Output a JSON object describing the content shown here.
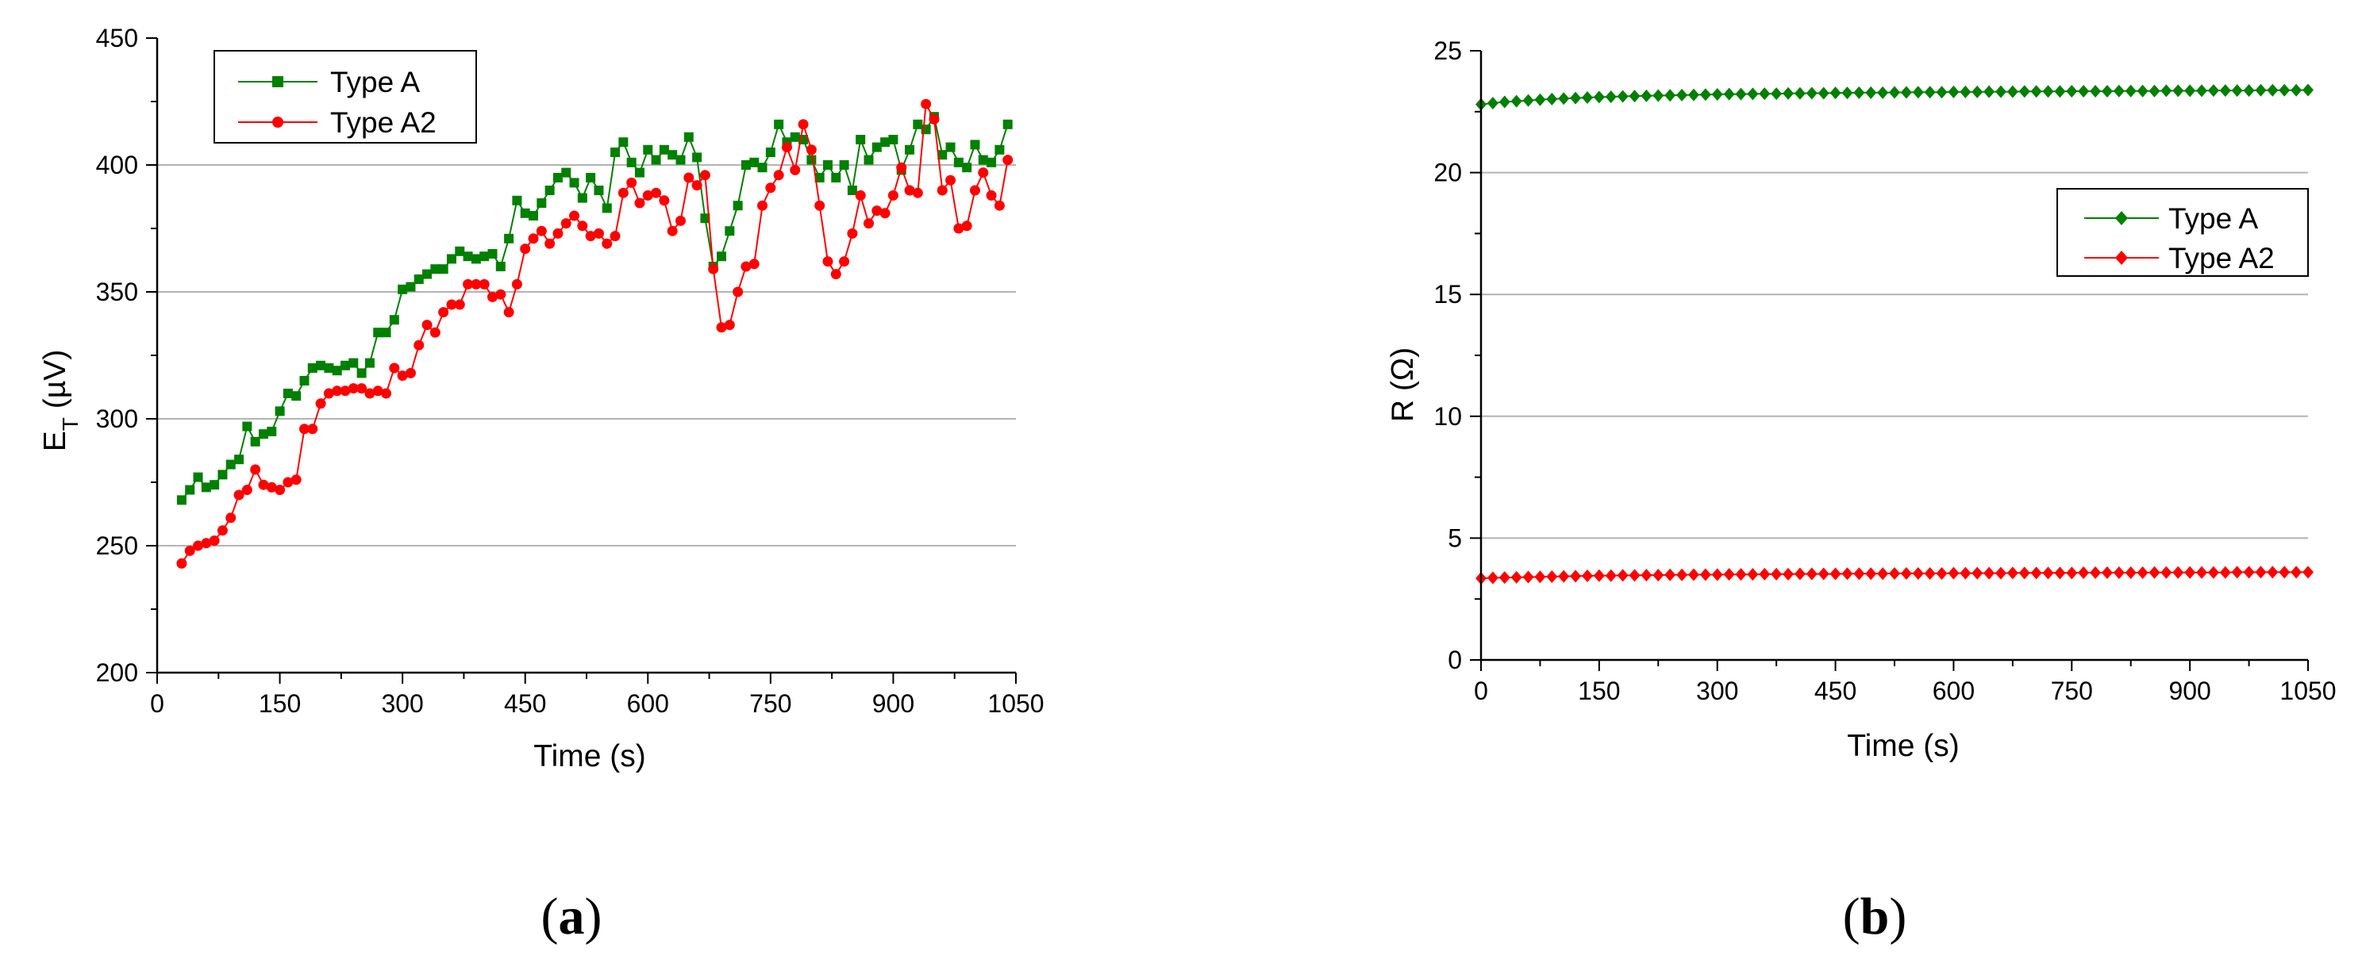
{
  "panels": [
    {
      "label_open": "(",
      "label_letter": "a",
      "label_close": ")"
    },
    {
      "label_open": "(",
      "label_letter": "b",
      "label_close": ")"
    }
  ],
  "chart_data": [
    {
      "type": "line",
      "xlabel": "Time (s)",
      "ylabel_main": "E",
      "ylabel_sub": "T",
      "ylabel_rest": " (µV)",
      "xlim": [
        0,
        1050
      ],
      "ylim": [
        200,
        450
      ],
      "xticks": [
        0,
        150,
        300,
        450,
        600,
        750,
        900,
        1050
      ],
      "yticks": [
        200,
        250,
        300,
        350,
        400,
        450
      ],
      "grid": "horizontal",
      "legend_position": "top-left",
      "series": [
        {
          "name": "Type A",
          "color": "#008000",
          "marker": "square",
          "x": [
            30,
            40,
            50,
            60,
            70,
            80,
            90,
            100,
            110,
            120,
            130,
            140,
            150,
            160,
            170,
            180,
            190,
            200,
            210,
            220,
            230,
            240,
            250,
            260,
            270,
            280,
            290,
            300,
            310,
            320,
            330,
            340,
            350,
            360,
            370,
            380,
            390,
            400,
            410,
            420,
            430,
            440,
            450,
            460,
            470,
            480,
            490,
            500,
            510,
            520,
            530,
            540,
            550,
            560,
            570,
            580,
            590,
            600,
            610,
            620,
            630,
            640,
            650,
            660,
            670,
            680,
            690,
            700,
            710,
            720,
            730,
            740,
            750,
            760,
            770,
            780,
            790,
            800,
            810,
            820,
            830,
            840,
            850,
            860,
            870,
            880,
            890,
            900,
            910,
            920,
            930,
            940,
            950,
            960,
            970,
            980,
            990,
            1000,
            1010,
            1020,
            1030,
            1040
          ],
          "y": [
            268,
            272,
            277,
            273,
            274,
            278,
            282,
            284,
            297,
            291,
            294,
            295,
            303,
            310,
            309,
            315,
            320,
            321,
            320,
            319,
            321,
            322,
            318,
            322,
            334,
            334,
            339,
            351,
            352,
            355,
            357,
            359,
            359,
            363,
            366,
            364,
            363,
            364,
            365,
            360,
            371,
            386,
            381,
            380,
            385,
            390,
            395,
            397,
            393,
            387,
            395,
            390,
            383,
            405,
            409,
            401,
            397,
            406,
            402,
            406,
            404,
            402,
            411,
            403,
            379,
            360,
            364,
            374,
            384,
            400,
            401,
            399,
            405,
            416,
            409,
            411,
            410,
            402,
            395,
            400,
            395,
            400,
            390,
            410,
            402,
            407,
            409,
            410,
            398,
            406,
            416,
            414,
            419,
            404,
            407,
            401,
            399,
            408,
            402,
            401,
            406,
            416
          ]
        },
        {
          "name": "Type A2",
          "color": "#ff0000",
          "marker": "circle",
          "x": [
            30,
            40,
            50,
            60,
            70,
            80,
            90,
            100,
            110,
            120,
            130,
            140,
            150,
            160,
            170,
            180,
            190,
            200,
            210,
            220,
            230,
            240,
            250,
            260,
            270,
            280,
            290,
            300,
            310,
            320,
            330,
            340,
            350,
            360,
            370,
            380,
            390,
            400,
            410,
            420,
            430,
            440,
            450,
            460,
            470,
            480,
            490,
            500,
            510,
            520,
            530,
            540,
            550,
            560,
            570,
            580,
            590,
            600,
            610,
            620,
            630,
            640,
            650,
            660,
            670,
            680,
            690,
            700,
            710,
            720,
            730,
            740,
            750,
            760,
            770,
            780,
            790,
            800,
            810,
            820,
            830,
            840,
            850,
            860,
            870,
            880,
            890,
            900,
            910,
            920,
            930,
            940,
            950,
            960,
            970,
            980,
            990,
            1000,
            1010,
            1020,
            1030,
            1040
          ],
          "y": [
            243,
            248,
            250,
            251,
            252,
            256,
            261,
            270,
            272,
            280,
            274,
            273,
            272,
            275,
            276,
            296,
            296,
            306,
            310,
            311,
            311,
            312,
            312,
            310,
            311,
            310,
            320,
            317,
            318,
            329,
            337,
            334,
            342,
            345,
            345,
            353,
            353,
            353,
            348,
            349,
            342,
            353,
            367,
            371,
            374,
            369,
            373,
            377,
            380,
            376,
            372,
            373,
            369,
            372,
            389,
            393,
            385,
            388,
            389,
            386,
            374,
            378,
            395,
            392,
            396,
            359,
            336,
            337,
            350,
            360,
            361,
            384,
            391,
            396,
            407,
            398,
            416,
            406,
            384,
            362,
            357,
            362,
            373,
            388,
            377,
            382,
            381,
            388,
            399,
            390,
            389,
            424,
            418,
            390,
            394,
            375,
            376,
            390,
            397,
            388,
            384,
            402
          ]
        }
      ]
    },
    {
      "type": "line",
      "xlabel": "Time (s)",
      "ylabel_main": "R",
      "ylabel_sub": "",
      "ylabel_rest": " (Ω)",
      "xlim": [
        0,
        1050
      ],
      "ylim": [
        0,
        25
      ],
      "xticks": [
        0,
        150,
        300,
        450,
        600,
        750,
        900,
        1050
      ],
      "yticks": [
        0,
        5,
        10,
        15,
        20,
        25
      ],
      "grid": "horizontal",
      "legend_position": "top-right",
      "series": [
        {
          "name": "Type A",
          "color": "#008000",
          "marker": "diamond",
          "x": [
            0,
            15,
            30,
            45,
            60,
            75,
            90,
            105,
            120,
            135,
            150,
            165,
            180,
            195,
            210,
            225,
            240,
            255,
            270,
            285,
            300,
            315,
            330,
            345,
            360,
            375,
            390,
            405,
            420,
            435,
            450,
            465,
            480,
            495,
            510,
            525,
            540,
            555,
            570,
            585,
            600,
            615,
            630,
            645,
            660,
            675,
            690,
            705,
            720,
            735,
            750,
            765,
            780,
            795,
            810,
            825,
            840,
            855,
            870,
            885,
            900,
            915,
            930,
            945,
            960,
            975,
            990,
            1005,
            1020,
            1035,
            1050
          ],
          "y": [
            22.8,
            22.85,
            22.9,
            22.93,
            22.96,
            22.99,
            23.02,
            23.04,
            23.06,
            23.08,
            23.1,
            23.11,
            23.13,
            23.14,
            23.15,
            23.16,
            23.17,
            23.18,
            23.19,
            23.2,
            23.21,
            23.22,
            23.22,
            23.23,
            23.24,
            23.24,
            23.25,
            23.25,
            23.26,
            23.26,
            23.27,
            23.27,
            23.28,
            23.28,
            23.28,
            23.29,
            23.29,
            23.3,
            23.3,
            23.3,
            23.31,
            23.31,
            23.31,
            23.32,
            23.32,
            23.32,
            23.33,
            23.33,
            23.33,
            23.33,
            23.34,
            23.34,
            23.34,
            23.34,
            23.35,
            23.35,
            23.35,
            23.35,
            23.36,
            23.36,
            23.36,
            23.36,
            23.37,
            23.37,
            23.37,
            23.37,
            23.38,
            23.38,
            23.38,
            23.38,
            23.39
          ]
        },
        {
          "name": "Type A2",
          "color": "#ff0000",
          "marker": "diamond",
          "x": [
            0,
            15,
            30,
            45,
            60,
            75,
            90,
            105,
            120,
            135,
            150,
            165,
            180,
            195,
            210,
            225,
            240,
            255,
            270,
            285,
            300,
            315,
            330,
            345,
            360,
            375,
            390,
            405,
            420,
            435,
            450,
            465,
            480,
            495,
            510,
            525,
            540,
            555,
            570,
            585,
            600,
            615,
            630,
            645,
            660,
            675,
            690,
            705,
            720,
            735,
            750,
            765,
            780,
            795,
            810,
            825,
            840,
            855,
            870,
            885,
            900,
            915,
            930,
            945,
            960,
            975,
            990,
            1005,
            1020,
            1035,
            1050
          ],
          "y": [
            3.35,
            3.37,
            3.38,
            3.39,
            3.4,
            3.41,
            3.42,
            3.43,
            3.44,
            3.45,
            3.46,
            3.46,
            3.47,
            3.47,
            3.48,
            3.48,
            3.49,
            3.49,
            3.5,
            3.5,
            3.5,
            3.51,
            3.51,
            3.51,
            3.52,
            3.52,
            3.52,
            3.53,
            3.53,
            3.53,
            3.53,
            3.54,
            3.54,
            3.54,
            3.54,
            3.55,
            3.55,
            3.55,
            3.55,
            3.55,
            3.56,
            3.56,
            3.56,
            3.56,
            3.56,
            3.57,
            3.57,
            3.57,
            3.57,
            3.57,
            3.57,
            3.58,
            3.58,
            3.58,
            3.58,
            3.58,
            3.58,
            3.59,
            3.59,
            3.59,
            3.59,
            3.59,
            3.59,
            3.59,
            3.6,
            3.6,
            3.6,
            3.6,
            3.6,
            3.6,
            3.6
          ]
        }
      ]
    }
  ]
}
